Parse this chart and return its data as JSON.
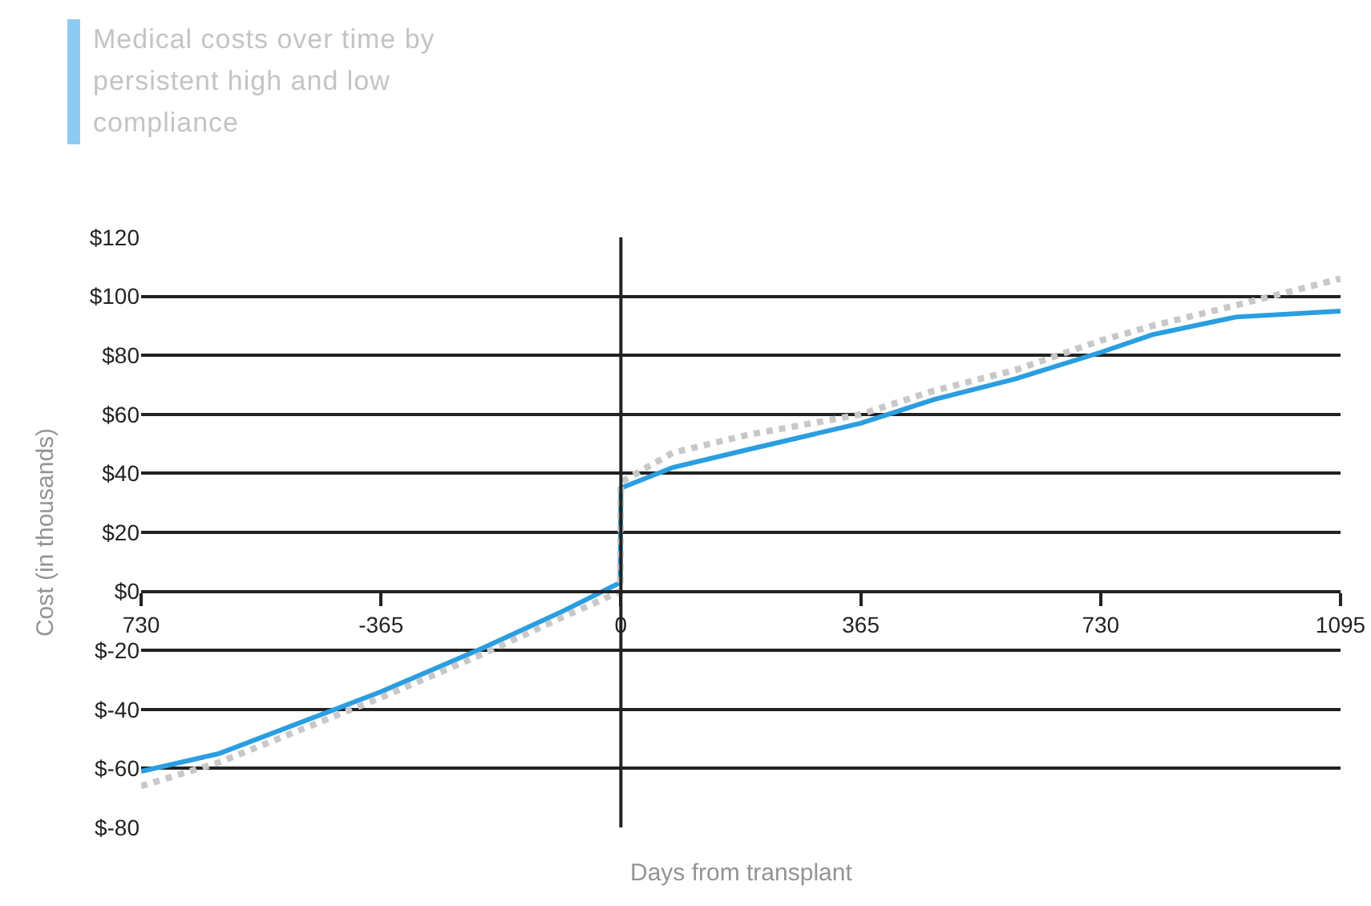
{
  "chart_data": {
    "type": "line",
    "title": "Medical costs over time by persistent high and low compliance",
    "xlabel": "Days from transplant",
    "ylabel": "Cost (in thousands)",
    "x": [
      -730,
      -612,
      -365,
      -208,
      -91,
      -1,
      0,
      79,
      192,
      365,
      476,
      600,
      730,
      809,
      936,
      1095
    ],
    "series": [
      {
        "color": "#2a9ee0",
        "line_style": "solid",
        "values": [
          -61,
          -55,
          -34,
          -19,
          -7,
          3,
          35,
          42,
          48,
          57,
          65,
          72,
          81,
          87,
          93,
          95
        ]
      },
      {
        "color": "#c8c8c8",
        "line_style": "dotted",
        "values": [
          -66,
          -58,
          -36,
          -21,
          -9,
          0,
          37,
          47,
          53,
          60,
          68,
          75,
          85,
          90,
          97,
          106
        ]
      }
    ],
    "xlim": [
      -730,
      1095
    ],
    "xticks": [
      {
        "value": -730,
        "label": "730"
      },
      -365,
      0,
      365,
      730,
      1095
    ],
    "ylim": [
      -80,
      120
    ],
    "yticks": [
      {
        "value": -80,
        "label": "$-80"
      },
      {
        "value": -60,
        "label": "$-60"
      },
      {
        "value": -40,
        "label": "$-40"
      },
      {
        "value": -20,
        "label": "$-20"
      },
      {
        "value": 0,
        "label": "$0"
      },
      {
        "value": 20,
        "label": "$20"
      },
      {
        "value": 40,
        "label": "$40"
      },
      {
        "value": 60,
        "label": "$60"
      },
      {
        "value": 80,
        "label": "$80"
      },
      {
        "value": 100,
        "label": "$100"
      },
      {
        "value": 120,
        "label": "$120"
      }
    ],
    "grid": "y",
    "ref_lines": [
      {
        "axis": "x",
        "value": 0,
        "color": "#222222"
      }
    ]
  }
}
